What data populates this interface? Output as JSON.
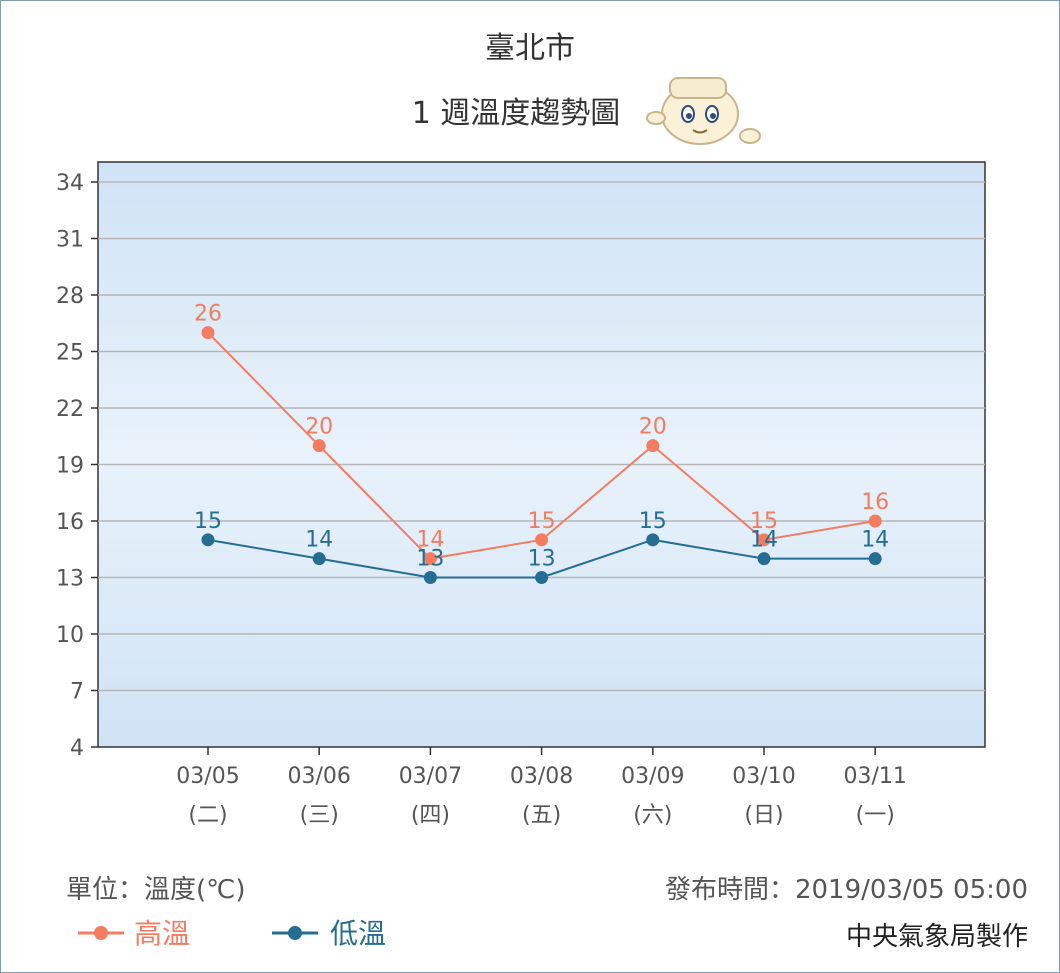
{
  "title": "臺北市",
  "subtitle": "1 週溫度趨勢圖",
  "unit_label": "單位：溫度(℃)",
  "publish_label": "發布時間：2019/03/05 05:00",
  "producer": "中央氣象局製作",
  "colors": {
    "high": "#f47c61",
    "low": "#266d94",
    "grid": "#b6b6b6"
  },
  "mascot_icon": "mascot-icon",
  "chart_data": {
    "type": "line",
    "categories": [
      "03/05",
      "03/06",
      "03/07",
      "03/08",
      "03/09",
      "03/10",
      "03/11"
    ],
    "weekdays": [
      "(二)",
      "(三)",
      "(四)",
      "(五)",
      "(六)",
      "(日)",
      "(一)"
    ],
    "series": [
      {
        "name": "高溫",
        "color": "#f47c61",
        "values": [
          26,
          20,
          14,
          15,
          20,
          15,
          16
        ]
      },
      {
        "name": "低溫",
        "color": "#266d94",
        "values": [
          15,
          14,
          13,
          13,
          15,
          14,
          14
        ]
      }
    ],
    "yticks": [
      4,
      7,
      10,
      13,
      16,
      19,
      22,
      25,
      28,
      31,
      34
    ],
    "ylim": [
      4,
      34
    ],
    "grid": true,
    "data_labels": true,
    "legend_position": "bottom-left"
  }
}
